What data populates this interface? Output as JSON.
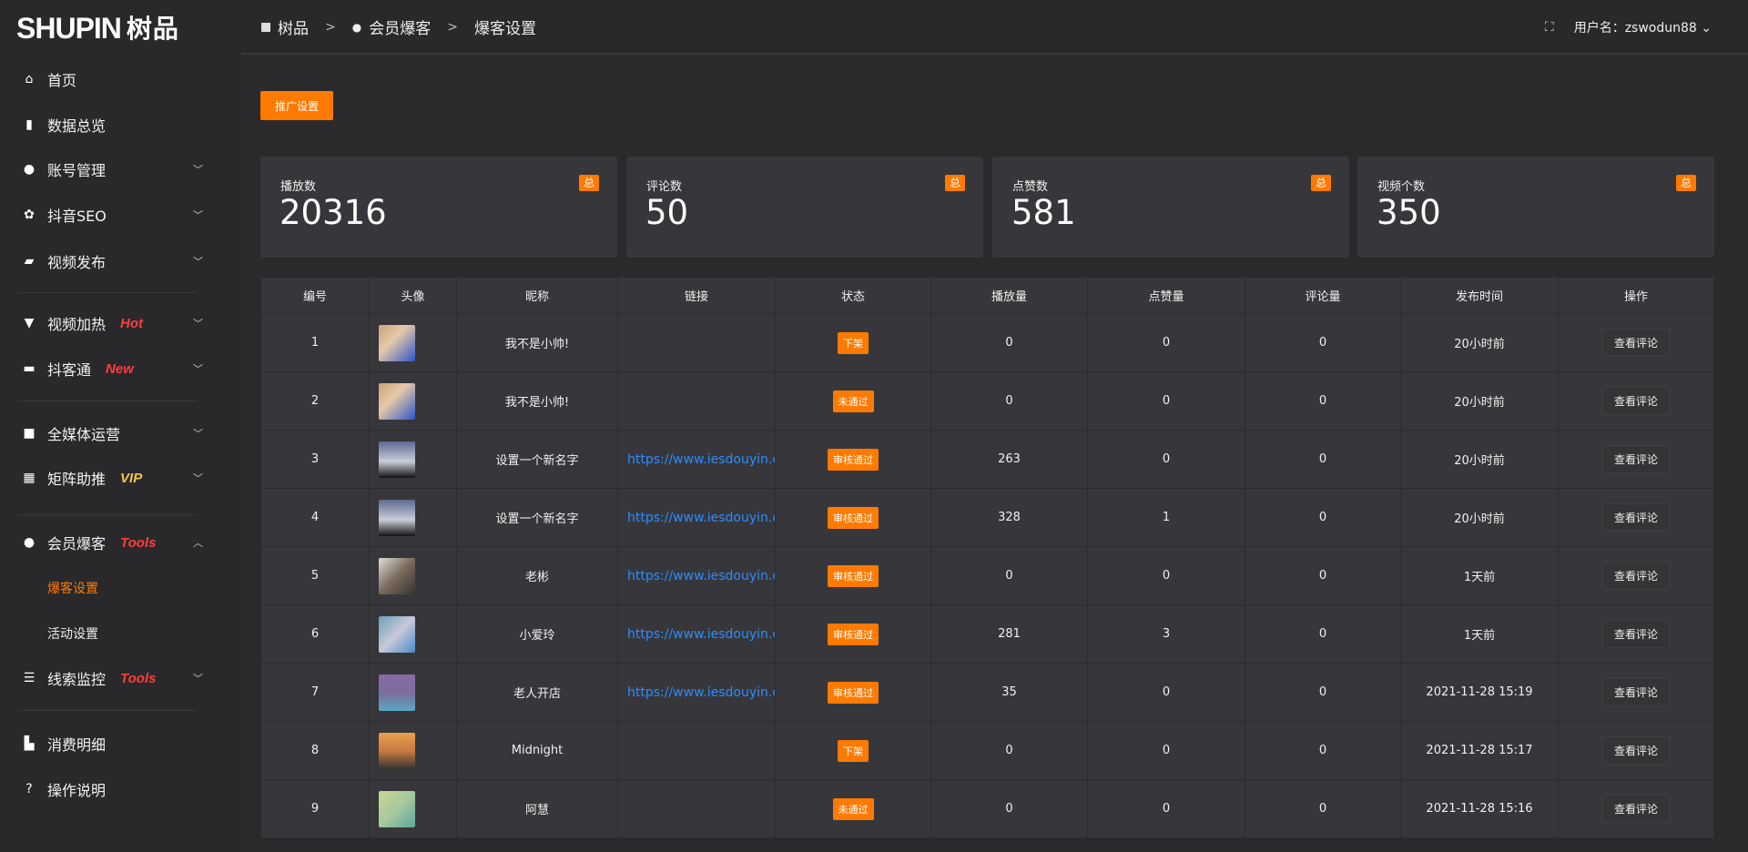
{
  "logo": {
    "text": "SHUPIN",
    "cn": "树品"
  },
  "sidebar": {
    "items": [
      {
        "label": "首页",
        "icon": "home-icon",
        "glyph": "⌂"
      },
      {
        "label": "数据总览",
        "icon": "bar-chart-icon",
        "glyph": "▮"
      },
      {
        "label": "账号管理",
        "icon": "user-icon",
        "glyph": "●",
        "chev": "﹀"
      },
      {
        "label": "抖音SEO",
        "icon": "gear-icon",
        "glyph": "✿",
        "chev": "﹀"
      },
      {
        "label": "视频发布",
        "icon": "camera-icon",
        "glyph": "▰",
        "chev": "﹀"
      },
      {
        "label": "视频加热",
        "icon": "screen-icon",
        "glyph": "▼",
        "tag": "Hot",
        "chev": "﹀"
      },
      {
        "label": "抖客通",
        "icon": "chat-icon",
        "glyph": "▬",
        "tag": "New",
        "chev": "﹀"
      },
      {
        "label": "全媒体运营",
        "icon": "monitor-icon",
        "glyph": "■",
        "chev": "﹀"
      },
      {
        "label": "矩阵助推",
        "icon": "grid-icon",
        "glyph": "▦",
        "tag": "VIP",
        "chev": "﹀"
      },
      {
        "label": "会员爆客",
        "icon": "user-icon",
        "glyph": "●",
        "tag": "Tools",
        "chev": "︿"
      },
      {
        "label": "线索监控",
        "icon": "sliders-icon",
        "glyph": "☰",
        "tag": "Tools",
        "chev": "﹀"
      },
      {
        "label": "消费明细",
        "icon": "wallet-icon",
        "glyph": "▙"
      },
      {
        "label": "操作说明",
        "icon": "help-icon",
        "glyph": "?"
      }
    ],
    "sub": [
      "爆客设置",
      "活动设置"
    ]
  },
  "colors": {
    "accent": "#ff7a00",
    "hot": "#ff3d3d",
    "vip": "#f5c24a",
    "link": "#2a8cff"
  },
  "breadcrumb": [
    "树品",
    "会员爆客",
    "爆客设置"
  ],
  "header": {
    "username": "用户名：zswodun88"
  },
  "promo_button": "推广设置",
  "cards": [
    {
      "label": "播放数",
      "value": "20316",
      "badge": "总"
    },
    {
      "label": "评论数",
      "value": "50",
      "badge": "总"
    },
    {
      "label": "点赞数",
      "value": "581",
      "badge": "总"
    },
    {
      "label": "视频个数",
      "value": "350",
      "badge": "总"
    }
  ],
  "table": {
    "headers": [
      "编号",
      "头像",
      "昵称",
      "链接",
      "状态",
      "播放量",
      "点赞量",
      "评论量",
      "发布时间",
      "操作"
    ],
    "rows": [
      [
        "1",
        "",
        "我不是小帅!",
        "",
        "下架",
        "0",
        "0",
        "0",
        "20小时前",
        "查看评论"
      ],
      [
        "2",
        "",
        "我不是小帅!",
        "",
        "未通过",
        "0",
        "0",
        "0",
        "20小时前",
        "查看评论"
      ],
      [
        "3",
        "",
        "设置一个新名字",
        "https://www.iesdouyin.c",
        "审核通过",
        "263",
        "0",
        "0",
        "20小时前",
        "查看评论"
      ],
      [
        "4",
        "",
        "设置一个新名字",
        "https://www.iesdouyin.c",
        "审核通过",
        "328",
        "1",
        "0",
        "20小时前",
        "查看评论"
      ],
      [
        "5",
        "",
        "老彬",
        "https://www.iesdouyin.c",
        "审核通过",
        "0",
        "0",
        "0",
        "1天前",
        "查看评论"
      ],
      [
        "6",
        "",
        "小爱玲",
        "https://www.iesdouyin.c",
        "审核通过",
        "281",
        "3",
        "0",
        "1天前",
        "查看评论"
      ],
      [
        "7",
        "",
        "老人开店",
        "https://www.iesdouyin.c",
        "审核通过",
        "35",
        "0",
        "0",
        "2021-11-28 15:19",
        "查看评论"
      ],
      [
        "8",
        "",
        "Midnight",
        "",
        "下架",
        "0",
        "0",
        "0",
        "2021-11-28 15:17",
        "查看评论"
      ],
      [
        "9",
        "",
        "阿慧",
        "",
        "未通过",
        "0",
        "0",
        "0",
        "2021-11-28 15:16",
        "查看评论"
      ]
    ]
  }
}
